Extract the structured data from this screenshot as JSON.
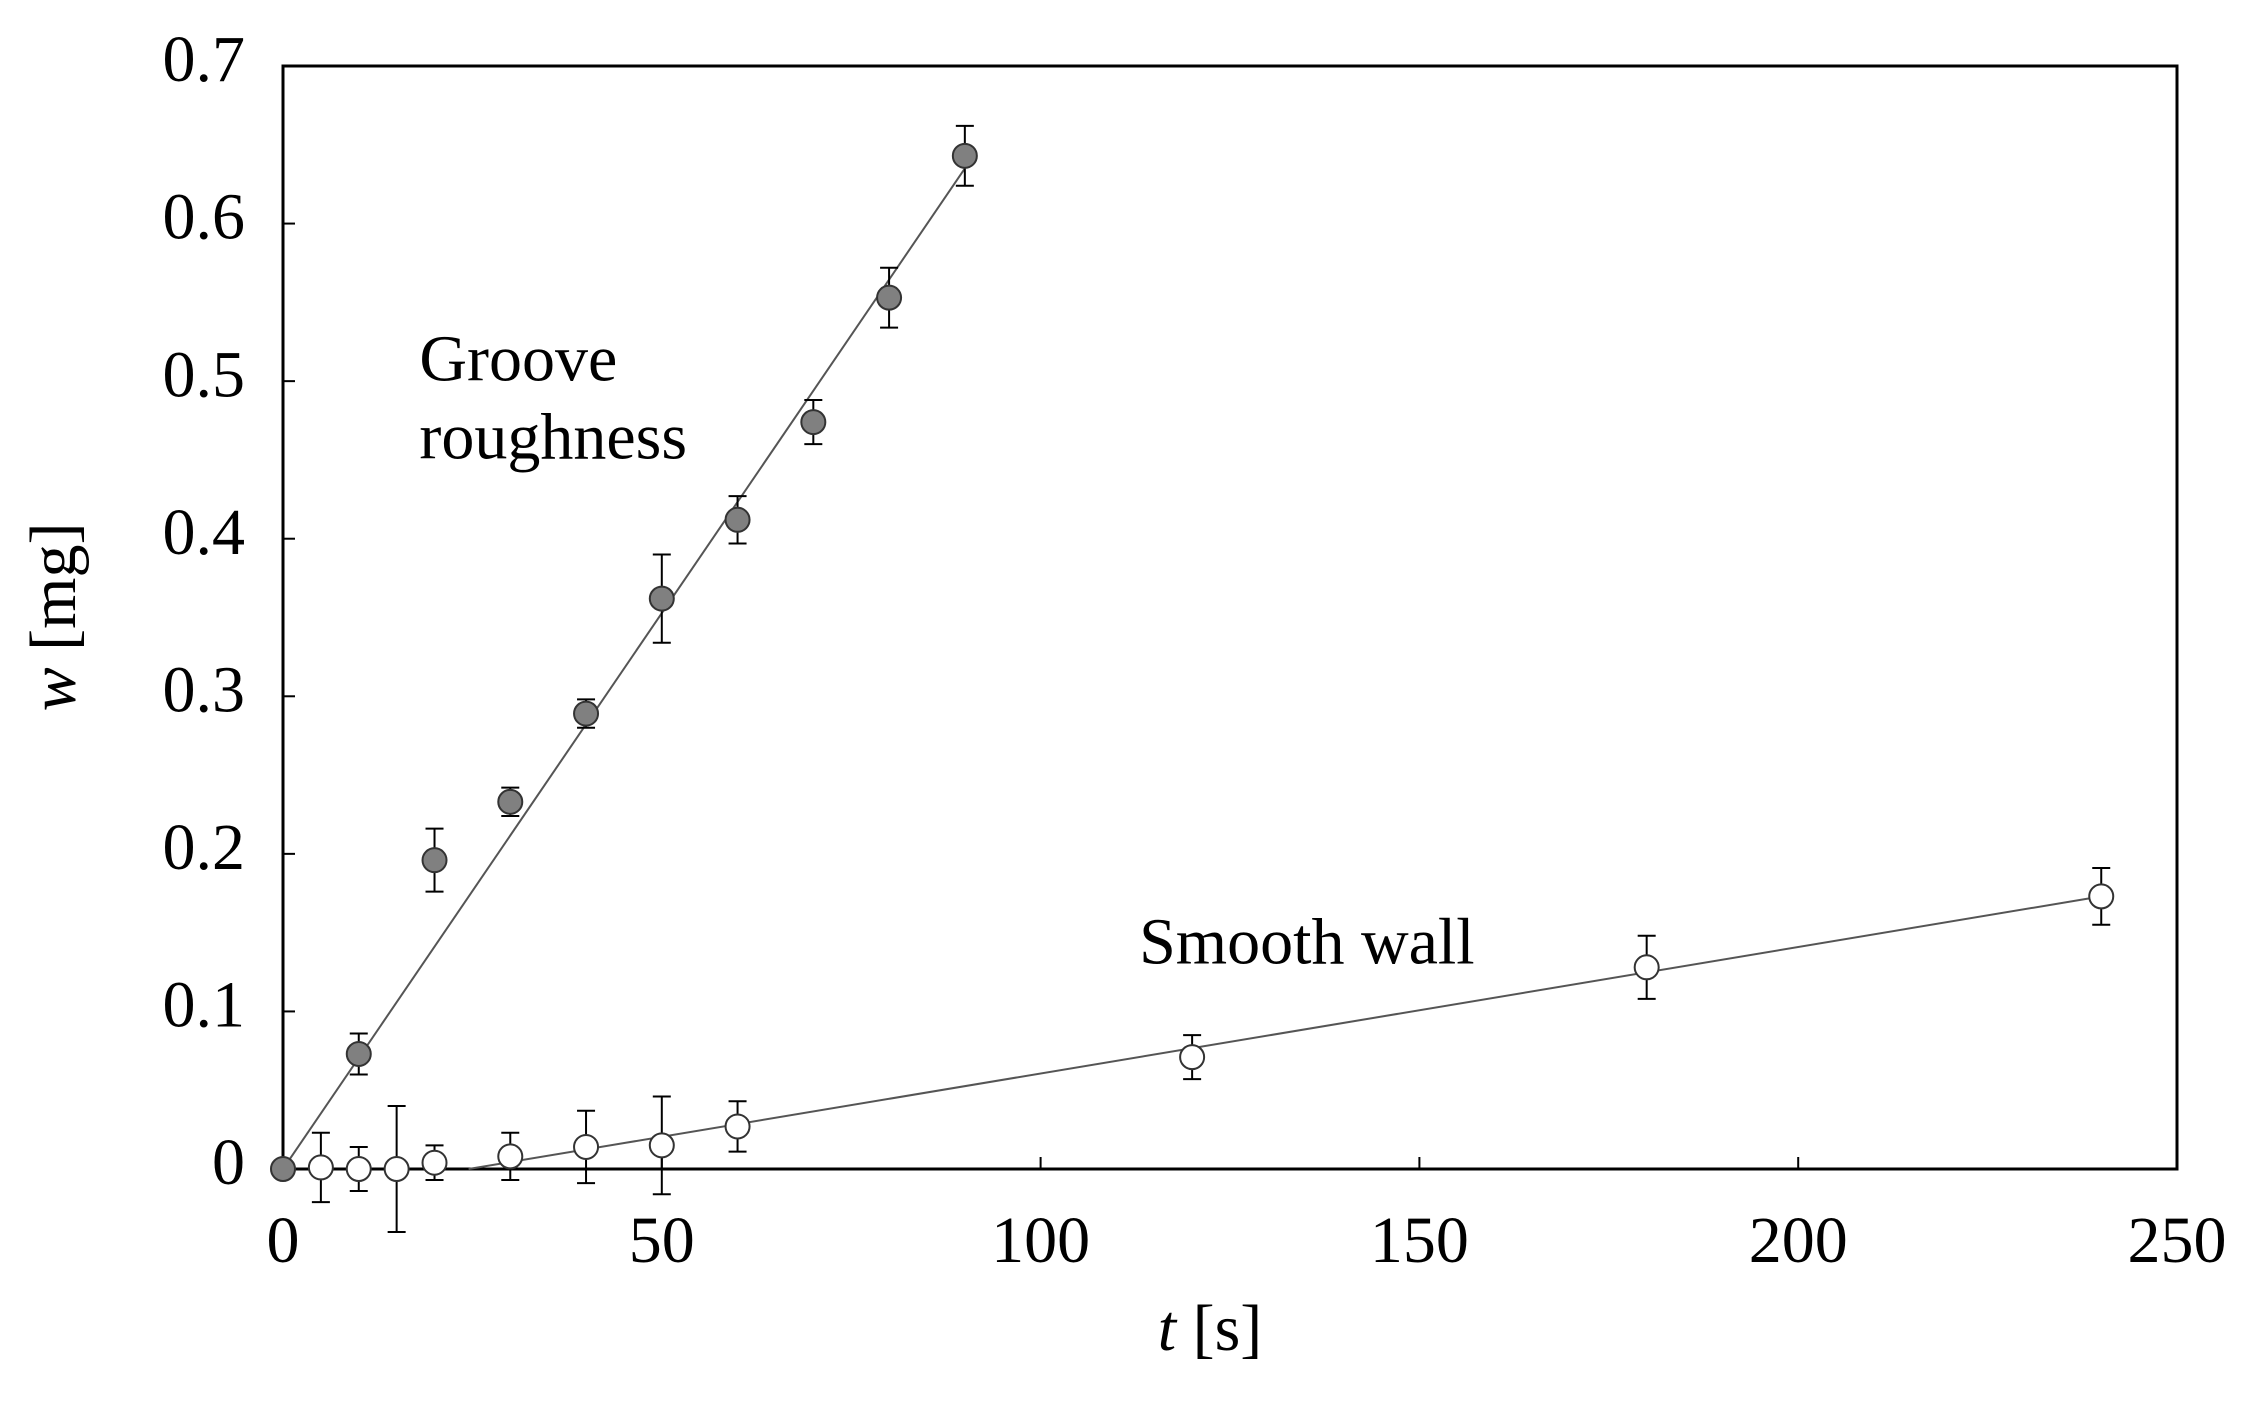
{
  "chart_data": {
    "type": "scatter",
    "xlabel": [
      "t",
      "[s]"
    ],
    "ylabel": [
      "w",
      "[mg]"
    ],
    "xlim": [
      0,
      250
    ],
    "xticks": [
      0,
      50,
      100,
      150,
      200,
      250
    ],
    "ylim": [
      0,
      0.7
    ],
    "yticks": [
      0,
      0.1,
      0.2,
      0.3,
      0.4,
      0.5,
      0.6,
      0.7
    ],
    "grid": false,
    "series": [
      {
        "color": "#808080",
        "x": [
          0,
          10,
          20,
          30,
          40,
          50,
          60,
          70,
          80,
          90
        ],
        "values": [
          0,
          0.073,
          0.196,
          0.233,
          0.289,
          0.362,
          0.412,
          0.474,
          0.553,
          0.643
        ],
        "errors": [
          0,
          0.013,
          0.02,
          0.009,
          0.009,
          0.028,
          0.015,
          0.014,
          0.019,
          0.019
        ]
      },
      {
        "color": "#ffffff",
        "x": [
          5,
          10,
          15,
          20,
          30,
          40,
          50,
          60,
          120,
          180,
          240
        ],
        "values": [
          0.001,
          0,
          0,
          0.004,
          0.008,
          0.014,
          0.015,
          0.027,
          0.071,
          0.128,
          0.173
        ],
        "errors": [
          0.022,
          0.014,
          0.04,
          0.011,
          0.015,
          0.023,
          0.031,
          0.016,
          0.014,
          0.02,
          0.018
        ]
      }
    ],
    "fit_lines": [
      {
        "x": [
          0,
          90
        ],
        "values": [
          0,
          0.635
        ]
      },
      {
        "x": [
          24.5,
          240
        ],
        "values": [
          0,
          0.173
        ]
      }
    ],
    "annotations": [
      {
        "lines": [
          "Groove",
          "roughness"
        ],
        "x": 18,
        "y": 0.51
      },
      {
        "lines": [
          "Smooth wall"
        ],
        "x": 113,
        "y": 0.14
      }
    ]
  }
}
